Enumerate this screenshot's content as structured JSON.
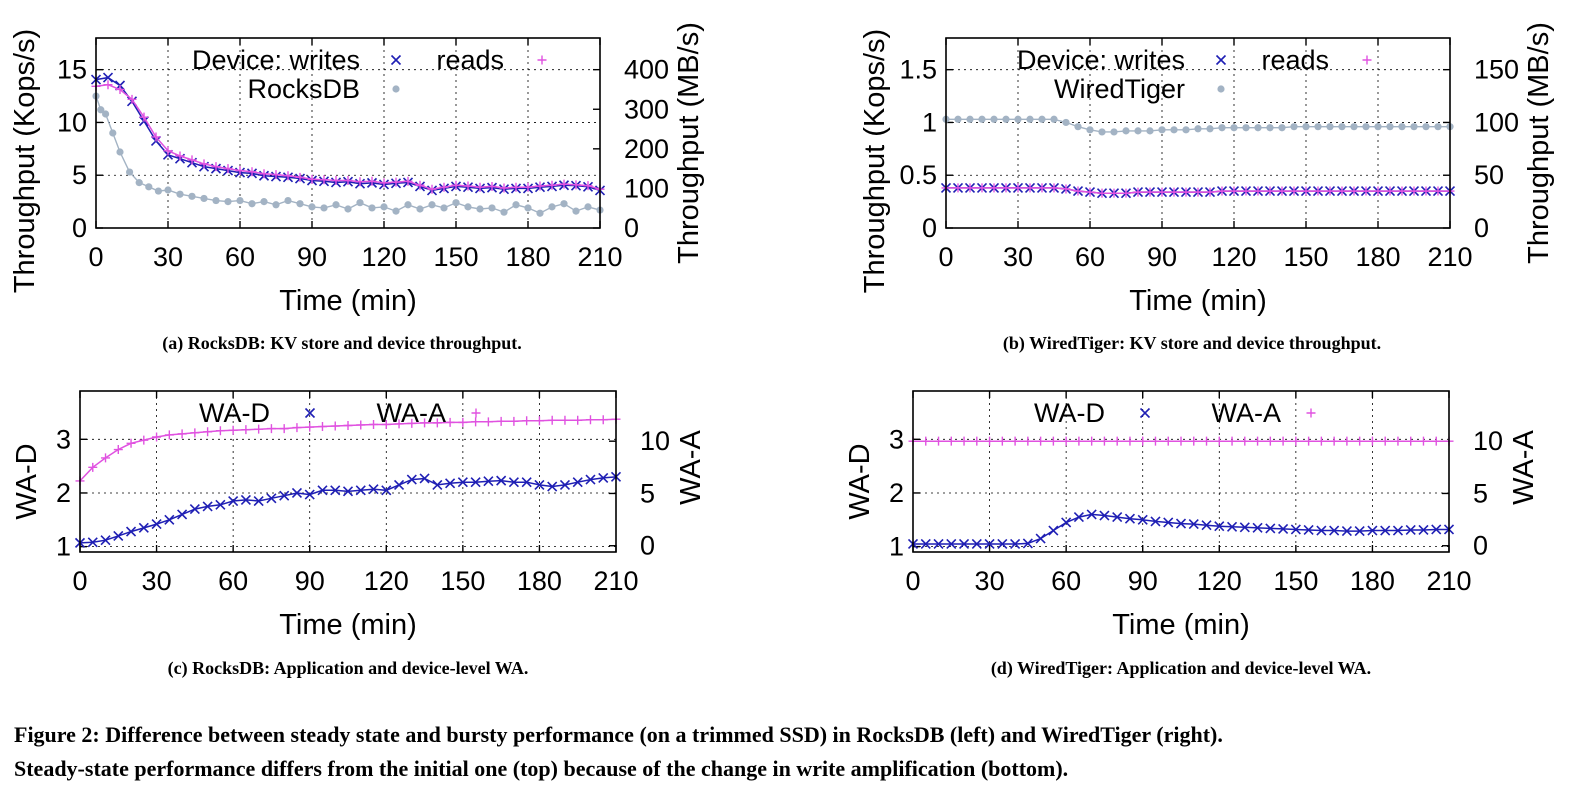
{
  "chart_data": [
    {
      "type": "line",
      "caption": "(a) RocksDB: KV store and device throughput.",
      "xlabel": "Time (min)",
      "ylabel": "Throughput (Kops/s)",
      "y2label": "Throughput (MB/s)",
      "xlim": [
        0,
        210
      ],
      "ylim": [
        0,
        18
      ],
      "y2lim": [
        0,
        480
      ],
      "xticks": [
        0,
        30,
        60,
        90,
        120,
        150,
        180,
        210
      ],
      "yticks": [
        0,
        5,
        10,
        15
      ],
      "y2ticks": [
        0,
        100,
        200,
        300,
        400
      ],
      "legend": {
        "rows": [
          [
            "Device: writes",
            "reads"
          ],
          [
            "RocksDB"
          ]
        ],
        "placement": "top"
      },
      "series": [
        {
          "name": "writes",
          "axis": "y2",
          "marker": "x",
          "color": "#1f1fb4",
          "x": [
            0,
            5,
            10,
            15,
            20,
            25,
            30,
            35,
            40,
            45,
            50,
            55,
            60,
            65,
            70,
            75,
            80,
            85,
            90,
            95,
            100,
            105,
            110,
            115,
            120,
            125,
            130,
            135,
            140,
            145,
            150,
            155,
            160,
            165,
            170,
            175,
            180,
            185,
            190,
            195,
            200,
            205,
            210
          ],
          "y": [
            375,
            380,
            360,
            320,
            270,
            220,
            185,
            175,
            165,
            155,
            150,
            145,
            140,
            138,
            132,
            130,
            128,
            125,
            120,
            118,
            115,
            117,
            112,
            114,
            110,
            113,
            115,
            105,
            95,
            100,
            105,
            103,
            100,
            102,
            98,
            100,
            100,
            103,
            105,
            108,
            107,
            104,
            95
          ]
        },
        {
          "name": "reads",
          "axis": "y2",
          "marker": "+",
          "color": "#e052e0",
          "x": [
            0,
            5,
            10,
            15,
            20,
            25,
            30,
            35,
            40,
            45,
            50,
            55,
            60,
            65,
            70,
            75,
            80,
            85,
            90,
            95,
            100,
            105,
            110,
            115,
            120,
            125,
            130,
            135,
            140,
            145,
            150,
            155,
            160,
            165,
            170,
            175,
            180,
            185,
            190,
            195,
            200,
            205,
            210
          ],
          "y": [
            358,
            362,
            350,
            325,
            280,
            230,
            195,
            182,
            172,
            162,
            155,
            150,
            145,
            142,
            137,
            135,
            132,
            128,
            123,
            122,
            120,
            120,
            117,
            118,
            114,
            116,
            118,
            108,
            98,
            103,
            108,
            106,
            103,
            105,
            101,
            103,
            103,
            106,
            108,
            111,
            109,
            107,
            98
          ]
        },
        {
          "name": "RocksDB",
          "axis": "y",
          "marker": "circle",
          "color": "#a3b3c4",
          "x": [
            0,
            2,
            4,
            7,
            10,
            14,
            18,
            22,
            26,
            30,
            35,
            40,
            45,
            50,
            55,
            60,
            65,
            70,
            75,
            80,
            85,
            90,
            95,
            100,
            105,
            110,
            115,
            120,
            125,
            130,
            135,
            140,
            145,
            150,
            155,
            160,
            165,
            170,
            175,
            180,
            185,
            190,
            195,
            200,
            205,
            210
          ],
          "y": [
            12.5,
            11.2,
            10.8,
            9,
            7.2,
            5.3,
            4.3,
            3.9,
            3.5,
            3.6,
            3.2,
            3.0,
            2.8,
            2.6,
            2.5,
            2.6,
            2.3,
            2.5,
            2.2,
            2.6,
            2.3,
            2.0,
            1.9,
            2.2,
            1.8,
            2.4,
            1.9,
            2.0,
            1.6,
            2.2,
            1.8,
            2.2,
            1.9,
            2.4,
            2.0,
            1.8,
            1.9,
            1.5,
            2.2,
            1.9,
            1.4,
            2.0,
            2.3,
            1.6,
            2.0,
            1.7
          ]
        }
      ]
    },
    {
      "type": "line",
      "caption": "(b) WiredTiger: KV store and device throughput.",
      "xlabel": "Time (min)",
      "ylabel": "Throughput (Kops/s)",
      "y2label": "Throughput (MB/s)",
      "xlim": [
        0,
        210
      ],
      "ylim": [
        0,
        1.8
      ],
      "y2lim": [
        0,
        180
      ],
      "xticks": [
        0,
        30,
        60,
        90,
        120,
        150,
        180,
        210
      ],
      "yticks": [
        0,
        0.5,
        1,
        1.5
      ],
      "y2ticks": [
        0,
        50,
        100,
        150
      ],
      "legend": {
        "rows": [
          [
            "Device: writes",
            "reads"
          ],
          [
            "WiredTiger"
          ]
        ],
        "placement": "top"
      },
      "series": [
        {
          "name": "writes",
          "axis": "y2",
          "marker": "x",
          "color": "#1f1fb4",
          "x": [
            0,
            5,
            10,
            15,
            20,
            25,
            30,
            35,
            40,
            45,
            50,
            55,
            60,
            65,
            70,
            75,
            80,
            85,
            90,
            95,
            100,
            105,
            110,
            115,
            120,
            125,
            130,
            135,
            140,
            145,
            150,
            155,
            160,
            165,
            170,
            175,
            180,
            185,
            190,
            195,
            200,
            205,
            210
          ],
          "y": [
            38,
            38,
            38,
            38,
            38,
            38,
            38,
            38,
            38,
            38,
            37,
            35,
            34,
            33,
            33,
            33,
            34,
            34,
            34,
            34,
            34,
            34,
            34,
            35,
            35,
            35,
            35,
            35,
            35,
            35,
            35,
            35,
            35,
            35,
            35,
            35,
            35,
            35,
            35,
            35,
            35,
            35,
            35
          ]
        },
        {
          "name": "reads",
          "axis": "y2",
          "marker": "+",
          "color": "#e052e0",
          "x": [
            0,
            5,
            10,
            15,
            20,
            25,
            30,
            35,
            40,
            45,
            50,
            55,
            60,
            65,
            70,
            75,
            80,
            85,
            90,
            95,
            100,
            105,
            110,
            115,
            120,
            125,
            130,
            135,
            140,
            145,
            150,
            155,
            160,
            165,
            170,
            175,
            180,
            185,
            190,
            195,
            200,
            205,
            210
          ],
          "y": [
            38,
            38,
            38,
            38,
            38,
            38,
            38,
            38,
            38,
            38,
            37,
            35,
            34,
            33,
            33,
            33,
            34,
            34,
            34,
            34,
            34,
            34,
            34,
            35,
            35,
            35,
            35,
            35,
            35,
            35,
            35,
            35,
            35,
            35,
            35,
            35,
            35,
            35,
            35,
            35,
            35,
            35,
            35
          ]
        },
        {
          "name": "WiredTiger",
          "axis": "y",
          "marker": "circle",
          "color": "#a3b3c4",
          "x": [
            0,
            5,
            10,
            15,
            20,
            25,
            30,
            35,
            40,
            45,
            50,
            55,
            60,
            65,
            70,
            75,
            80,
            85,
            90,
            95,
            100,
            105,
            110,
            115,
            120,
            125,
            130,
            135,
            140,
            145,
            150,
            155,
            160,
            165,
            170,
            175,
            180,
            185,
            190,
            195,
            200,
            205,
            210
          ],
          "y": [
            1.03,
            1.03,
            1.03,
            1.03,
            1.03,
            1.03,
            1.03,
            1.03,
            1.03,
            1.03,
            1.0,
            0.96,
            0.93,
            0.91,
            0.91,
            0.92,
            0.92,
            0.92,
            0.93,
            0.93,
            0.93,
            0.94,
            0.94,
            0.95,
            0.95,
            0.95,
            0.95,
            0.95,
            0.95,
            0.96,
            0.96,
            0.96,
            0.96,
            0.96,
            0.96,
            0.96,
            0.96,
            0.96,
            0.96,
            0.96,
            0.96,
            0.96,
            0.96
          ]
        }
      ]
    },
    {
      "type": "line",
      "caption": "(c) RocksDB: Application and device-level WA.",
      "xlabel": "Time (min)",
      "ylabel": "WA-D",
      "y2label": "WA-A",
      "xlim": [
        0,
        210
      ],
      "ylim": [
        0.9,
        3.9
      ],
      "y2lim": [
        -0.6,
        14.8
      ],
      "xticks": [
        0,
        30,
        60,
        90,
        120,
        150,
        180,
        210
      ],
      "yticks": [
        1,
        2,
        3
      ],
      "y2ticks": [
        0,
        5,
        10
      ],
      "legend": {
        "rows": [
          [
            "WA-D",
            "WA-A"
          ]
        ],
        "placement": "top"
      },
      "series": [
        {
          "name": "WA-D",
          "axis": "y",
          "marker": "x",
          "color": "#1f1fb4",
          "x": [
            0,
            5,
            10,
            15,
            20,
            25,
            30,
            35,
            40,
            45,
            50,
            55,
            60,
            65,
            70,
            75,
            80,
            85,
            90,
            95,
            100,
            105,
            110,
            115,
            120,
            125,
            130,
            135,
            140,
            145,
            150,
            155,
            160,
            165,
            170,
            175,
            180,
            185,
            190,
            195,
            200,
            205,
            210
          ],
          "y": [
            1.07,
            1.08,
            1.12,
            1.2,
            1.28,
            1.35,
            1.42,
            1.5,
            1.6,
            1.7,
            1.75,
            1.78,
            1.85,
            1.87,
            1.85,
            1.9,
            1.95,
            2.0,
            1.97,
            2.05,
            2.05,
            2.03,
            2.05,
            2.07,
            2.05,
            2.15,
            2.25,
            2.27,
            2.15,
            2.18,
            2.2,
            2.2,
            2.22,
            2.23,
            2.2,
            2.2,
            2.15,
            2.12,
            2.15,
            2.2,
            2.25,
            2.28,
            2.3
          ]
        },
        {
          "name": "WA-A",
          "axis": "y2",
          "marker": "+",
          "color": "#e052e0",
          "x": [
            0,
            5,
            10,
            15,
            20,
            25,
            30,
            35,
            40,
            45,
            50,
            55,
            60,
            65,
            70,
            75,
            80,
            85,
            90,
            95,
            100,
            105,
            110,
            115,
            120,
            125,
            130,
            135,
            140,
            145,
            150,
            155,
            160,
            165,
            170,
            175,
            180,
            185,
            190,
            195,
            200,
            205,
            210
          ],
          "y": [
            6.2,
            7.5,
            8.4,
            9.2,
            9.8,
            10.1,
            10.4,
            10.6,
            10.7,
            10.8,
            10.9,
            11.0,
            11.05,
            11.1,
            11.15,
            11.2,
            11.2,
            11.3,
            11.35,
            11.4,
            11.45,
            11.5,
            11.55,
            11.6,
            11.6,
            11.65,
            11.7,
            11.75,
            11.75,
            11.8,
            11.8,
            11.85,
            11.85,
            11.9,
            11.9,
            11.95,
            11.95,
            12.0,
            12.0,
            12.0,
            12.05,
            12.05,
            12.1
          ]
        }
      ]
    },
    {
      "type": "line",
      "caption": "(d) WiredTiger: Application and device-level WA.",
      "xlabel": "Time (min)",
      "ylabel": "WA-D",
      "y2label": "WA-A",
      "xlim": [
        0,
        210
      ],
      "ylim": [
        0.9,
        3.9
      ],
      "y2lim": [
        -0.6,
        14.8
      ],
      "xticks": [
        0,
        30,
        60,
        90,
        120,
        150,
        180,
        210
      ],
      "yticks": [
        1,
        2,
        3
      ],
      "y2ticks": [
        0,
        5,
        10
      ],
      "legend": {
        "rows": [
          [
            "WA-D",
            "WA-A"
          ]
        ],
        "placement": "top"
      },
      "series": [
        {
          "name": "WA-D",
          "axis": "y",
          "marker": "x",
          "color": "#1f1fb4",
          "x": [
            0,
            5,
            10,
            15,
            20,
            25,
            30,
            35,
            40,
            45,
            50,
            55,
            60,
            65,
            70,
            75,
            80,
            85,
            90,
            95,
            100,
            105,
            110,
            115,
            120,
            125,
            130,
            135,
            140,
            145,
            150,
            155,
            160,
            165,
            170,
            175,
            180,
            185,
            190,
            195,
            200,
            205,
            210
          ],
          "y": [
            1.05,
            1.05,
            1.05,
            1.05,
            1.05,
            1.05,
            1.05,
            1.05,
            1.05,
            1.06,
            1.15,
            1.3,
            1.45,
            1.55,
            1.6,
            1.58,
            1.55,
            1.52,
            1.5,
            1.47,
            1.45,
            1.43,
            1.42,
            1.4,
            1.38,
            1.37,
            1.36,
            1.35,
            1.34,
            1.33,
            1.32,
            1.31,
            1.3,
            1.3,
            1.29,
            1.29,
            1.3,
            1.3,
            1.3,
            1.31,
            1.31,
            1.32,
            1.32
          ]
        },
        {
          "name": "WA-A",
          "axis": "y2",
          "marker": "+",
          "color": "#e052e0",
          "x": [
            0,
            5,
            10,
            15,
            20,
            25,
            30,
            35,
            40,
            45,
            50,
            55,
            60,
            65,
            70,
            75,
            80,
            85,
            90,
            95,
            100,
            105,
            110,
            115,
            120,
            125,
            130,
            135,
            140,
            145,
            150,
            155,
            160,
            165,
            170,
            175,
            180,
            185,
            190,
            195,
            200,
            205,
            210
          ],
          "y": [
            10,
            10,
            10,
            10,
            10,
            10,
            10,
            10,
            10,
            10,
            10,
            10,
            10,
            10,
            10,
            10,
            10,
            10,
            10,
            10,
            10,
            10,
            10,
            10,
            10,
            10,
            10,
            10,
            10,
            10,
            10,
            10,
            10,
            10,
            10,
            10,
            10,
            10,
            10,
            10,
            10,
            10,
            10
          ]
        }
      ]
    }
  ],
  "figure_caption": {
    "line1": "Figure 2: Difference between steady state and bursty performance (on a trimmed SSD) in RocksDB (left) and WiredTiger (right).",
    "line2": "Steady-state performance differs from the initial one (top) because of the change in write amplification (bottom)."
  }
}
